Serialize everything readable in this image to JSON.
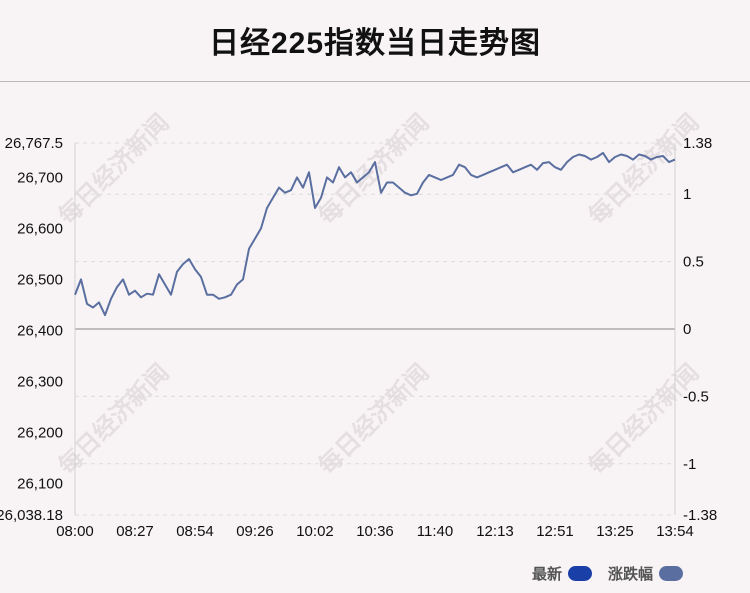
{
  "title": "日经225指数当日走势图",
  "watermark": "每日经济新闻",
  "legend": [
    {
      "label": "最新",
      "color": "#1a40a8"
    },
    {
      "label": "涨跌幅",
      "color": "#5a6fa0"
    }
  ],
  "chart_data": {
    "type": "line",
    "title": "日经225指数当日走势图",
    "x_ticks": [
      "08:00",
      "08:27",
      "08:54",
      "09:26",
      "10:02",
      "10:36",
      "11:40",
      "12:13",
      "12:51",
      "13:25",
      "13:54"
    ],
    "y_left_ticks": [
      "26,767.5",
      "26,700",
      "26,600",
      "26,500",
      "26,400",
      "26,300",
      "26,200",
      "26,100",
      "26,038.18"
    ],
    "y_left_values": [
      26767.5,
      26700,
      26600,
      26500,
      26400,
      26300,
      26200,
      26100,
      26038.18
    ],
    "y_right_ticks": [
      "1.38",
      "1",
      "0.5",
      "0",
      "-0.5",
      "-1",
      "-1.38"
    ],
    "y_right_values": [
      1.38,
      1,
      0.5,
      0,
      -0.5,
      -1,
      -1.38
    ],
    "ylim": [
      26038.18,
      26767.5
    ],
    "ylim_right": [
      -1.38,
      1.38
    ],
    "series": [
      {
        "name": "最新",
        "x_index": [
          0,
          1,
          2,
          3,
          4,
          5,
          6,
          7,
          8,
          9,
          10,
          11,
          12,
          13,
          14,
          15,
          16,
          17,
          18,
          19,
          20,
          21,
          22,
          23,
          24,
          25,
          26,
          27,
          28,
          29,
          30,
          31,
          32,
          33,
          34,
          35,
          36,
          37,
          38,
          39,
          40,
          41,
          42,
          43,
          44,
          45,
          46,
          47,
          48,
          49,
          50,
          51,
          52,
          53,
          54,
          55,
          56,
          57,
          58,
          59,
          60,
          61,
          62,
          63,
          64,
          65,
          66,
          67,
          68,
          69,
          70,
          71,
          72,
          73,
          74,
          75,
          76,
          77,
          78,
          79,
          80,
          81,
          82,
          83,
          84,
          85,
          86,
          87,
          88,
          89,
          90,
          91,
          92,
          93,
          94,
          95,
          96,
          97,
          98,
          99,
          100
        ],
        "values": [
          26470,
          26500,
          26452,
          26445,
          26455,
          26430,
          26462,
          26485,
          26500,
          26470,
          26478,
          26465,
          26472,
          26470,
          26510,
          26490,
          26470,
          26515,
          26530,
          26540,
          26520,
          26505,
          26470,
          26470,
          26462,
          26465,
          26470,
          26490,
          26500,
          26560,
          26580,
          26600,
          26640,
          26660,
          26680,
          26670,
          26675,
          26700,
          26680,
          26710,
          26640,
          26660,
          26700,
          26690,
          26720,
          26700,
          26710,
          26690,
          26700,
          26710,
          26730,
          26670,
          26690,
          26690,
          26680,
          26670,
          26665,
          26668,
          26690,
          26705,
          26700,
          26695,
          26700,
          26705,
          26725,
          26720,
          26705,
          26700,
          26705,
          26710,
          26715,
          26720,
          26725,
          26710,
          26715,
          26720,
          26725,
          26715,
          26728,
          26730,
          26720,
          26715,
          26730,
          26740,
          26745,
          26742,
          26735,
          26740,
          26748,
          26730,
          26740,
          26745,
          26742,
          26735,
          26745,
          26742,
          26735,
          26740,
          26742,
          26730,
          26735
        ]
      }
    ],
    "grid": true
  }
}
